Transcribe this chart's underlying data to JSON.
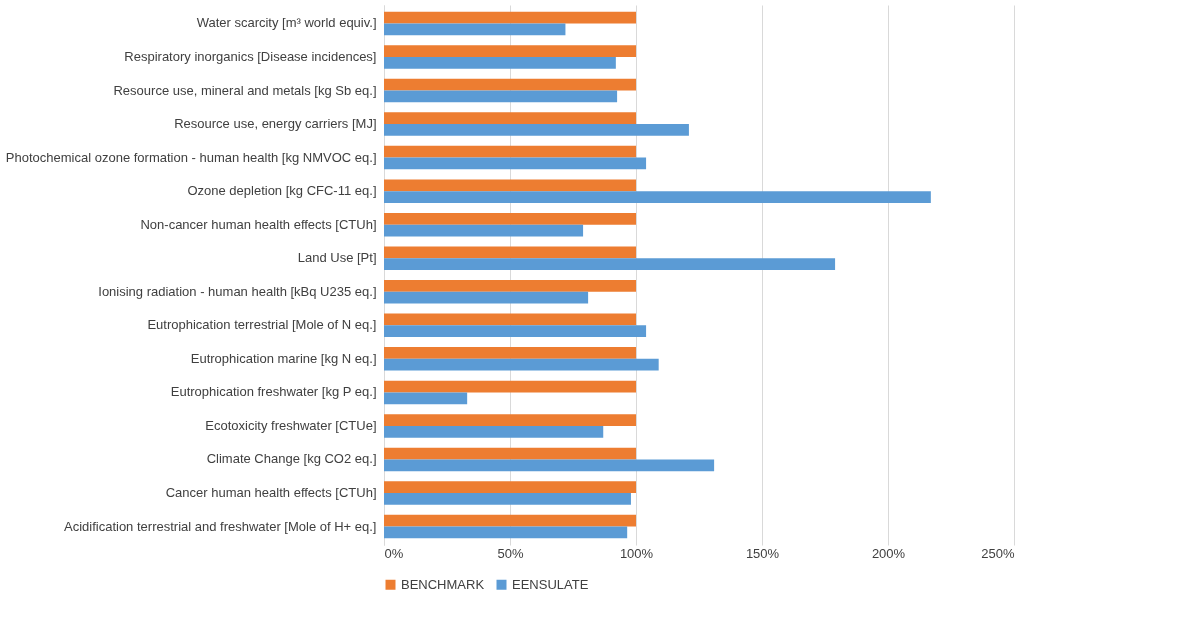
{
  "chart_data": {
    "type": "bar",
    "orientation": "horizontal",
    "categories": [
      "Water scarcity [m³ world equiv.]",
      "Respiratory inorganics [Disease incidences]",
      "Resource use, mineral and metals [kg Sb eq.]",
      "Resource use, energy carriers [MJ]",
      "Photochemical ozone formation - human health [kg NMVOC eq.]",
      "Ozone depletion [kg CFC-11 eq.]",
      "Non-cancer human health effects [CTUh]",
      "Land Use [Pt]",
      "Ionising radiation - human health [kBq U235 eq.]",
      "Eutrophication terrestrial [Mole of N eq.]",
      "Eutrophication marine [kg N eq.]",
      "Eutrophication freshwater [kg P eq.]",
      "Ecotoxicity freshwater [CTUe]",
      "Climate Change [kg CO2 eq.]",
      "Cancer human health effects [CTUh]",
      "Acidification terrestrial and freshwater [Mole of H+ eq.]"
    ],
    "series": [
      {
        "name": "BENCHMARK",
        "color": "#ed7d31",
        "values": [
          100,
          100,
          100,
          100,
          100,
          100,
          100,
          100,
          100,
          100,
          100,
          100,
          100,
          100,
          100,
          100
        ]
      },
      {
        "name": "EENSULATE",
        "color": "#5b9bd5",
        "values": [
          72,
          92,
          92.5,
          121,
          104,
          217,
          79,
          179,
          81,
          104,
          109,
          33,
          87,
          131,
          98,
          96.5
        ]
      }
    ],
    "xlim": [
      0,
      250
    ],
    "xticks": [
      {
        "value": 0,
        "label": "0%"
      },
      {
        "value": 50,
        "label": "50%"
      },
      {
        "value": 100,
        "label": "100%"
      },
      {
        "value": 150,
        "label": "150%"
      },
      {
        "value": 200,
        "label": "200%"
      },
      {
        "value": 250,
        "label": "250%"
      }
    ],
    "grid": "x",
    "legend": "bottom"
  }
}
